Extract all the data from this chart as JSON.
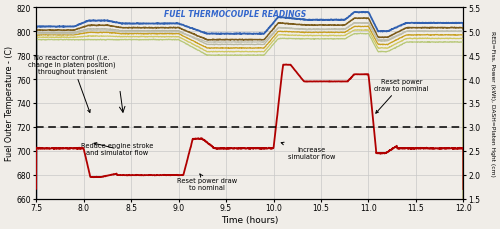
{
  "xlim": [
    7.5,
    12.0
  ],
  "ylim_left": [
    660,
    820
  ],
  "ylim_right": [
    1.5,
    5.5
  ],
  "xticks": [
    7.5,
    8.0,
    8.5,
    9.0,
    9.5,
    10.0,
    10.5,
    11.0,
    11.5,
    12.0
  ],
  "xtick_labels": [
    "7.5",
    "8.0",
    "8.5",
    "9.0",
    "9.5",
    "10.0",
    "10.5",
    "11.0",
    "11.5",
    "12.0"
  ],
  "yticks_left": [
    660,
    680,
    700,
    720,
    740,
    760,
    780,
    800,
    820
  ],
  "yticks_right": [
    1.5,
    2.0,
    2.5,
    3.0,
    3.5,
    4.0,
    4.5,
    5.0,
    5.5
  ],
  "xlabel": "Time (hours)",
  "ylabel_left": "Fuel Outer Temperature - (C)",
  "ylabel_right": "RED=Fiss. Power (kWt), DASH=Platen Hght (cm)",
  "thermocouple_label": "FUEL THERMOCOUPLE READINGS",
  "bg_color": "#f0ede8",
  "grid_color": "#c8c8c8",
  "tc_bases": [
    804,
    801,
    799,
    797,
    795,
    793,
    798
  ],
  "tc_colors": [
    "#3060b0",
    "#7b5b1a",
    "#b8b8a0",
    "#c8a020",
    "#d0c860",
    "#b8c878",
    "#c0c0b0"
  ],
  "tc_lw": [
    1.3,
    1.1,
    0.9,
    0.9,
    0.9,
    0.9,
    0.9
  ],
  "power_color": "#b00000",
  "power_lw": 1.3,
  "dashed_y_right": 3.0,
  "dashed_lw": 1.1,
  "nominal_power": 2.55,
  "low_power": 1.95,
  "high_power1": 4.3,
  "high_power2": 4.1,
  "ann_fontsize": 4.8,
  "label_fontsize": 5.5,
  "axis_fontsize": 5.8,
  "tc_label_fontsize": 5.5,
  "xlabel_fontsize": 6.5
}
